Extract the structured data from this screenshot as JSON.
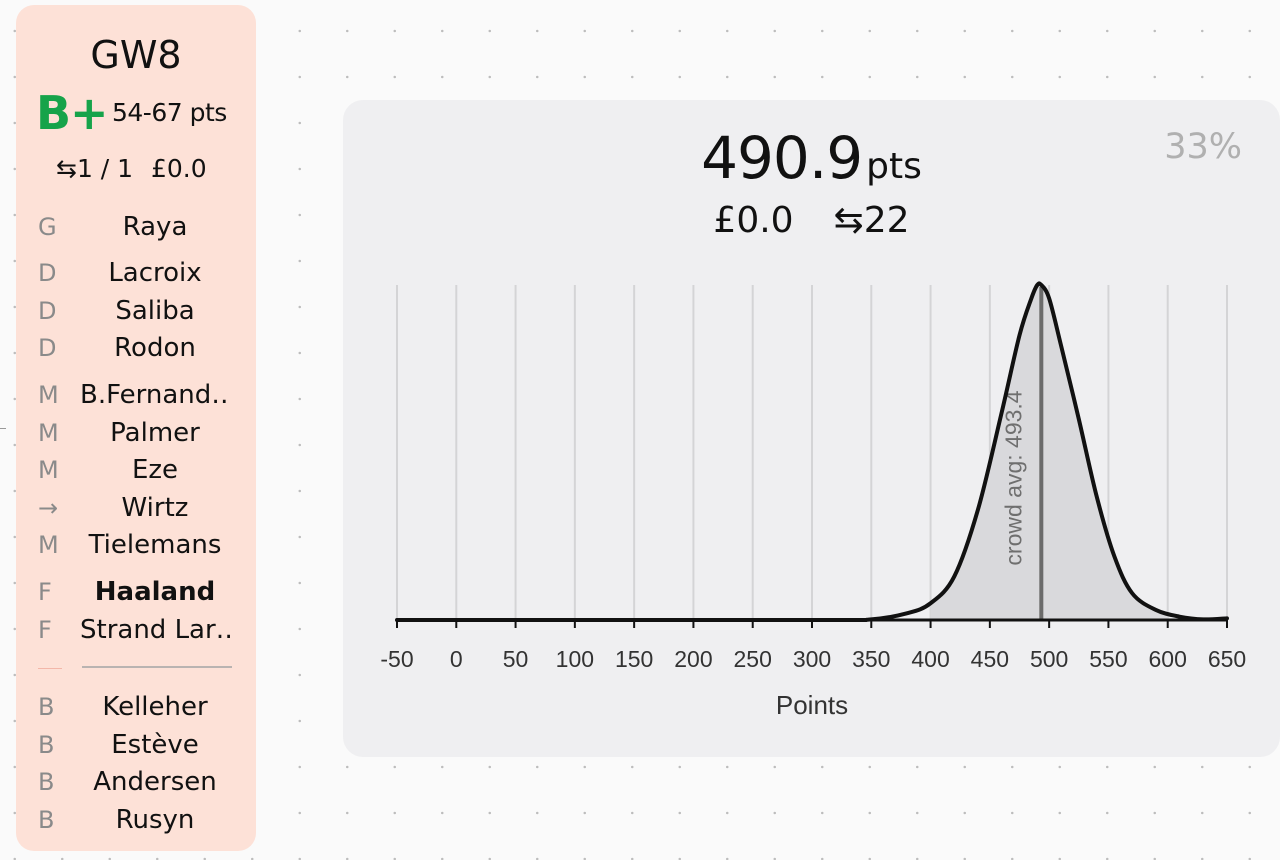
{
  "sidebar": {
    "gameweek": "GW8",
    "grade": "B+",
    "points_range": "54-67 pts",
    "transfers": "⇆1 / 1",
    "bank": "£0.0",
    "starters": [
      {
        "pos": "G",
        "name": "Raya",
        "bold": false
      },
      {
        "pos": "D",
        "name": "Lacroix",
        "bold": false
      },
      {
        "pos": "D",
        "name": "Saliba",
        "bold": false
      },
      {
        "pos": "D",
        "name": "Rodon",
        "bold": false
      },
      {
        "pos": "M",
        "name": "B.Fernand…",
        "bold": false
      },
      {
        "pos": "M",
        "name": "Palmer",
        "bold": false
      },
      {
        "pos": "M",
        "name": "Eze",
        "bold": false
      },
      {
        "pos": "→",
        "name": "Wirtz",
        "bold": false
      },
      {
        "pos": "M",
        "name": "Tielemans",
        "bold": false
      },
      {
        "pos": "F",
        "name": "Haaland",
        "bold": true
      },
      {
        "pos": "F",
        "name": "Strand Lar…",
        "bold": false
      }
    ],
    "bench": [
      {
        "pos": "B",
        "name": "Kelleher"
      },
      {
        "pos": "B",
        "name": "Estève"
      },
      {
        "pos": "B",
        "name": "Andersen"
      },
      {
        "pos": "B",
        "name": "Rusyn"
      }
    ]
  },
  "panel": {
    "percent": "33%",
    "total_points": "490.9",
    "total_unit": "pts",
    "bank": "£0.0",
    "transfers": "⇆22"
  },
  "colors": {
    "card_bg": "#fde1d7",
    "grade_green": "#16a34a",
    "panel_bg": "#efeff1",
    "curve": "#111111",
    "fill": "#d9d9dc",
    "avg_line": "#6b6b6b"
  },
  "chart_data": {
    "type": "area",
    "title": "",
    "xlabel": "Points",
    "ylabel": "",
    "xlim": [
      -50,
      650
    ],
    "xticks": [
      -50,
      0,
      50,
      100,
      150,
      200,
      250,
      300,
      350,
      400,
      450,
      500,
      550,
      600,
      650
    ],
    "grid": "vertical",
    "x": [
      -50,
      300,
      350,
      380,
      400,
      420,
      440,
      460,
      475,
      485,
      490,
      493.4,
      500,
      510,
      525,
      540,
      555,
      570,
      590,
      610,
      630,
      650
    ],
    "y": [
      0,
      0,
      0.002,
      0.02,
      0.05,
      0.13,
      0.33,
      0.62,
      0.85,
      0.96,
      1.0,
      1.0,
      0.96,
      0.82,
      0.6,
      0.37,
      0.19,
      0.08,
      0.03,
      0.01,
      0.002,
      0.005
    ],
    "shaded_range": [
      400,
      600
    ],
    "annotation": {
      "label": "crowd avg: 493.4",
      "x": 493.4
    }
  }
}
